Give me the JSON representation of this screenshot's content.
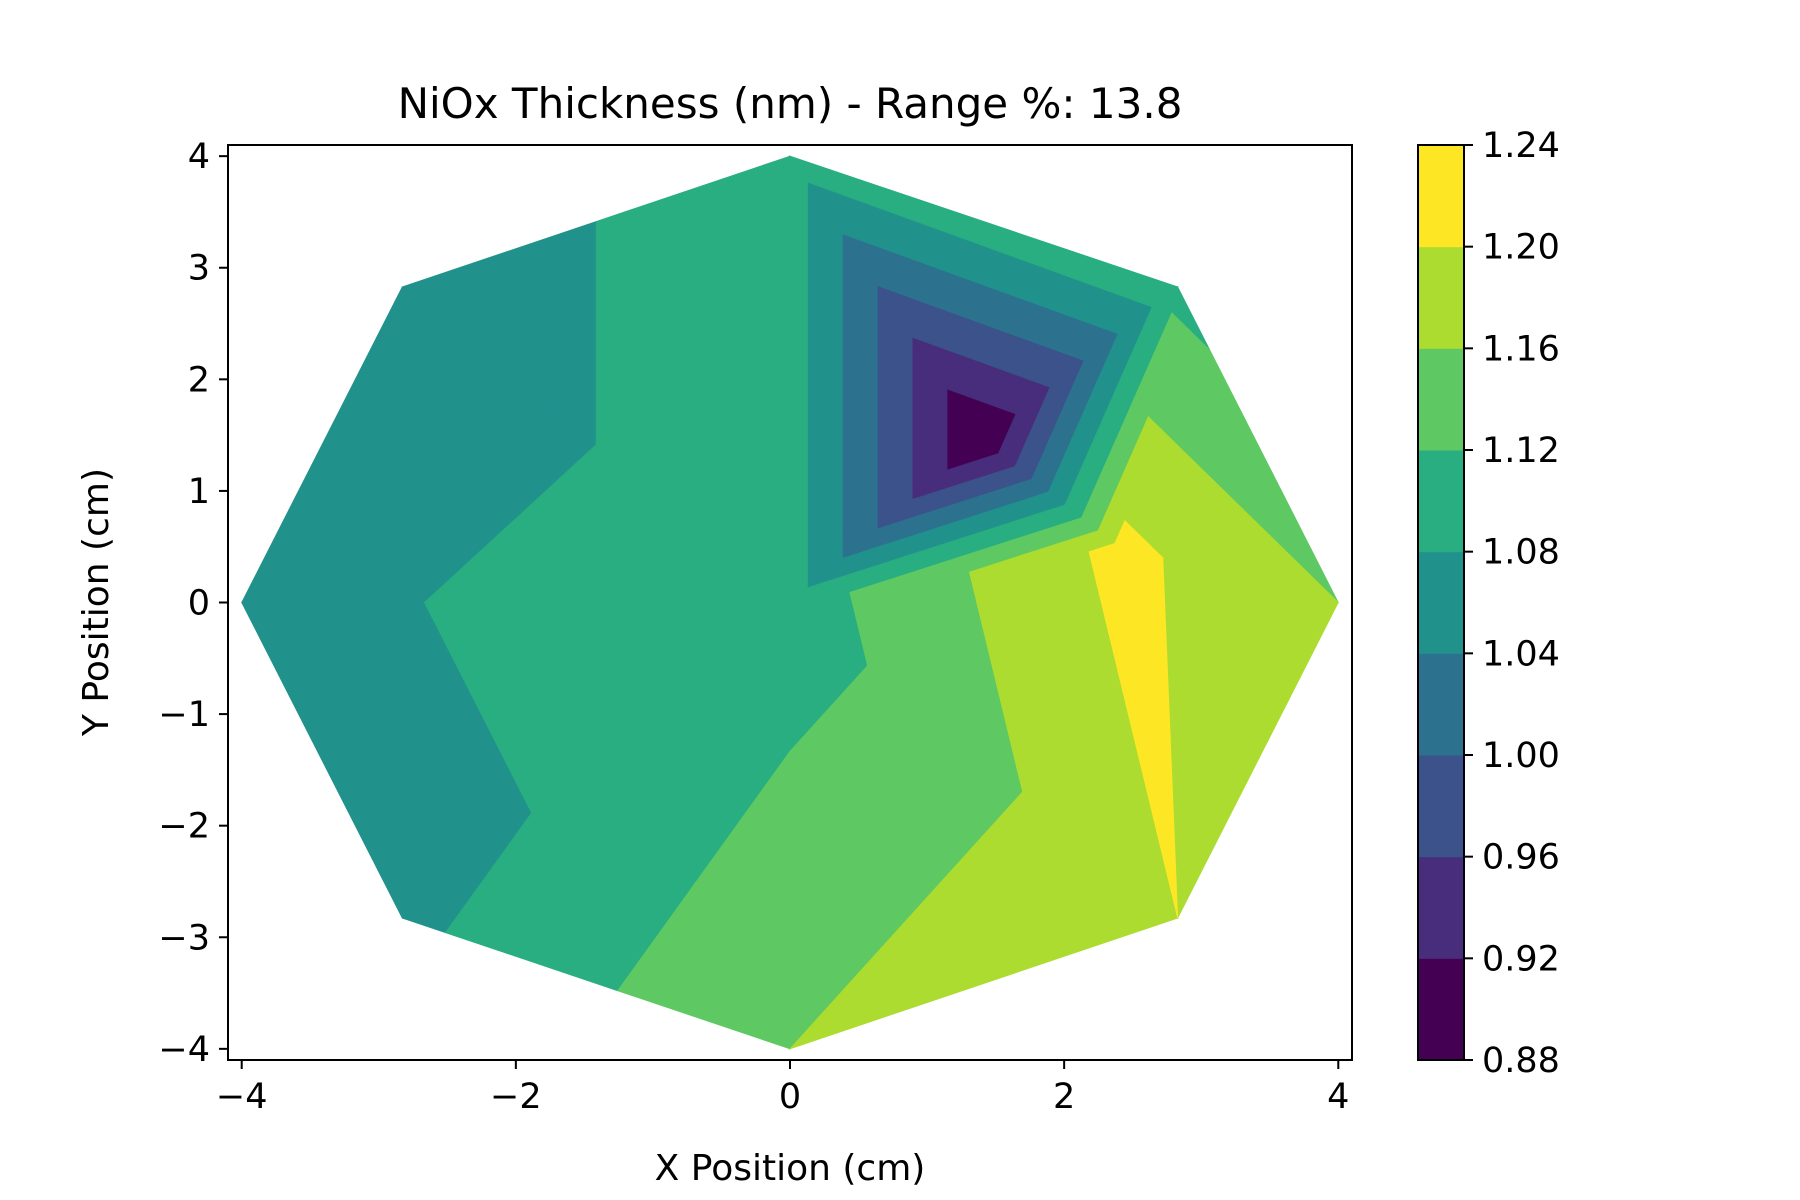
{
  "chart_data": {
    "type": "filled-contour",
    "title": "NiOx Thickness (nm) - Range %: 13.8",
    "xlabel": "X Position (cm)",
    "ylabel": "Y Position (cm)",
    "xlim": [
      -4.1,
      4.1
    ],
    "ylim": [
      -4.1,
      4.1
    ],
    "xticks": [
      -4,
      -2,
      0,
      2,
      4
    ],
    "yticks": [
      -4,
      -3,
      -2,
      -1,
      0,
      1,
      2,
      3,
      4
    ],
    "xtick_labels": [
      "−4",
      "−2",
      "0",
      "2",
      "4"
    ],
    "ytick_labels": [
      "−4",
      "−3",
      "−2",
      "−1",
      "0",
      "1",
      "2",
      "3",
      "4"
    ],
    "colormap": "viridis",
    "levels": [
      0.88,
      0.92,
      0.96,
      1.0,
      1.04,
      1.08,
      1.12,
      1.16,
      1.2,
      1.24
    ],
    "colorbar_tick_labels": [
      "0.88",
      "0.92",
      "0.96",
      "1.00",
      "1.04",
      "1.08",
      "1.12",
      "1.16",
      "1.20",
      "1.24"
    ],
    "level_colors": [
      "#440154",
      "#472d7b",
      "#3b528b",
      "#2c728e",
      "#21918c",
      "#28ae80",
      "#5ec962",
      "#addc30",
      "#fde725"
    ],
    "grid": false,
    "colorbar_position": "right",
    "measurement_points": {
      "x": [
        0,
        0,
        2.8284,
        4,
        2.8284,
        0,
        -2.8284,
        -4,
        -2.8284,
        1.4,
        2.4
      ],
      "y": [
        0,
        4,
        2.8284,
        0,
        -2.8284,
        -4,
        -2.8284,
        0,
        2.8284,
        1.45,
        0.5
      ],
      "z": [
        1.1,
        1.1,
        1.11,
        1.16,
        1.2,
        1.16,
        1.07,
        1.07,
        1.06,
        0.88,
        1.21
      ]
    }
  }
}
